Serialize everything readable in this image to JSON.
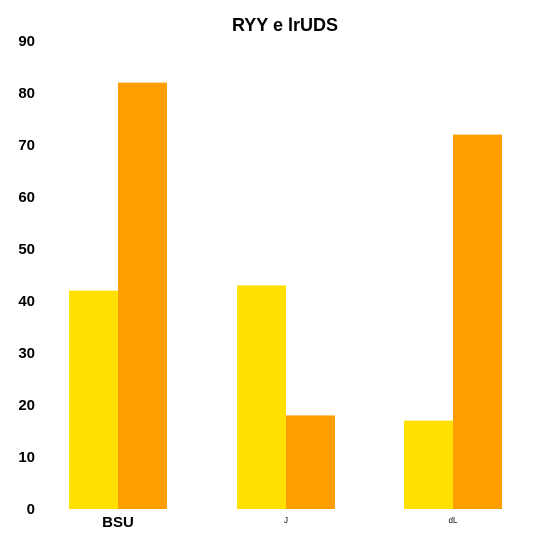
{
  "chart_data": {
    "type": "bar",
    "title": "RYY e lrUDS",
    "xlabel": "",
    "ylabel": "",
    "categories": [
      "BSU",
      "J",
      "dL"
    ],
    "series": [
      {
        "values": [
          42,
          43,
          17
        ],
        "color": "#FFE000"
      },
      {
        "values": [
          82,
          18,
          72
        ],
        "color": "#FF9E00"
      }
    ],
    "ylim": [
      0,
      90
    ],
    "yticks": [
      0,
      10,
      20,
      30,
      40,
      50,
      60,
      70,
      80,
      90
    ],
    "grid": false,
    "legend": "none"
  }
}
